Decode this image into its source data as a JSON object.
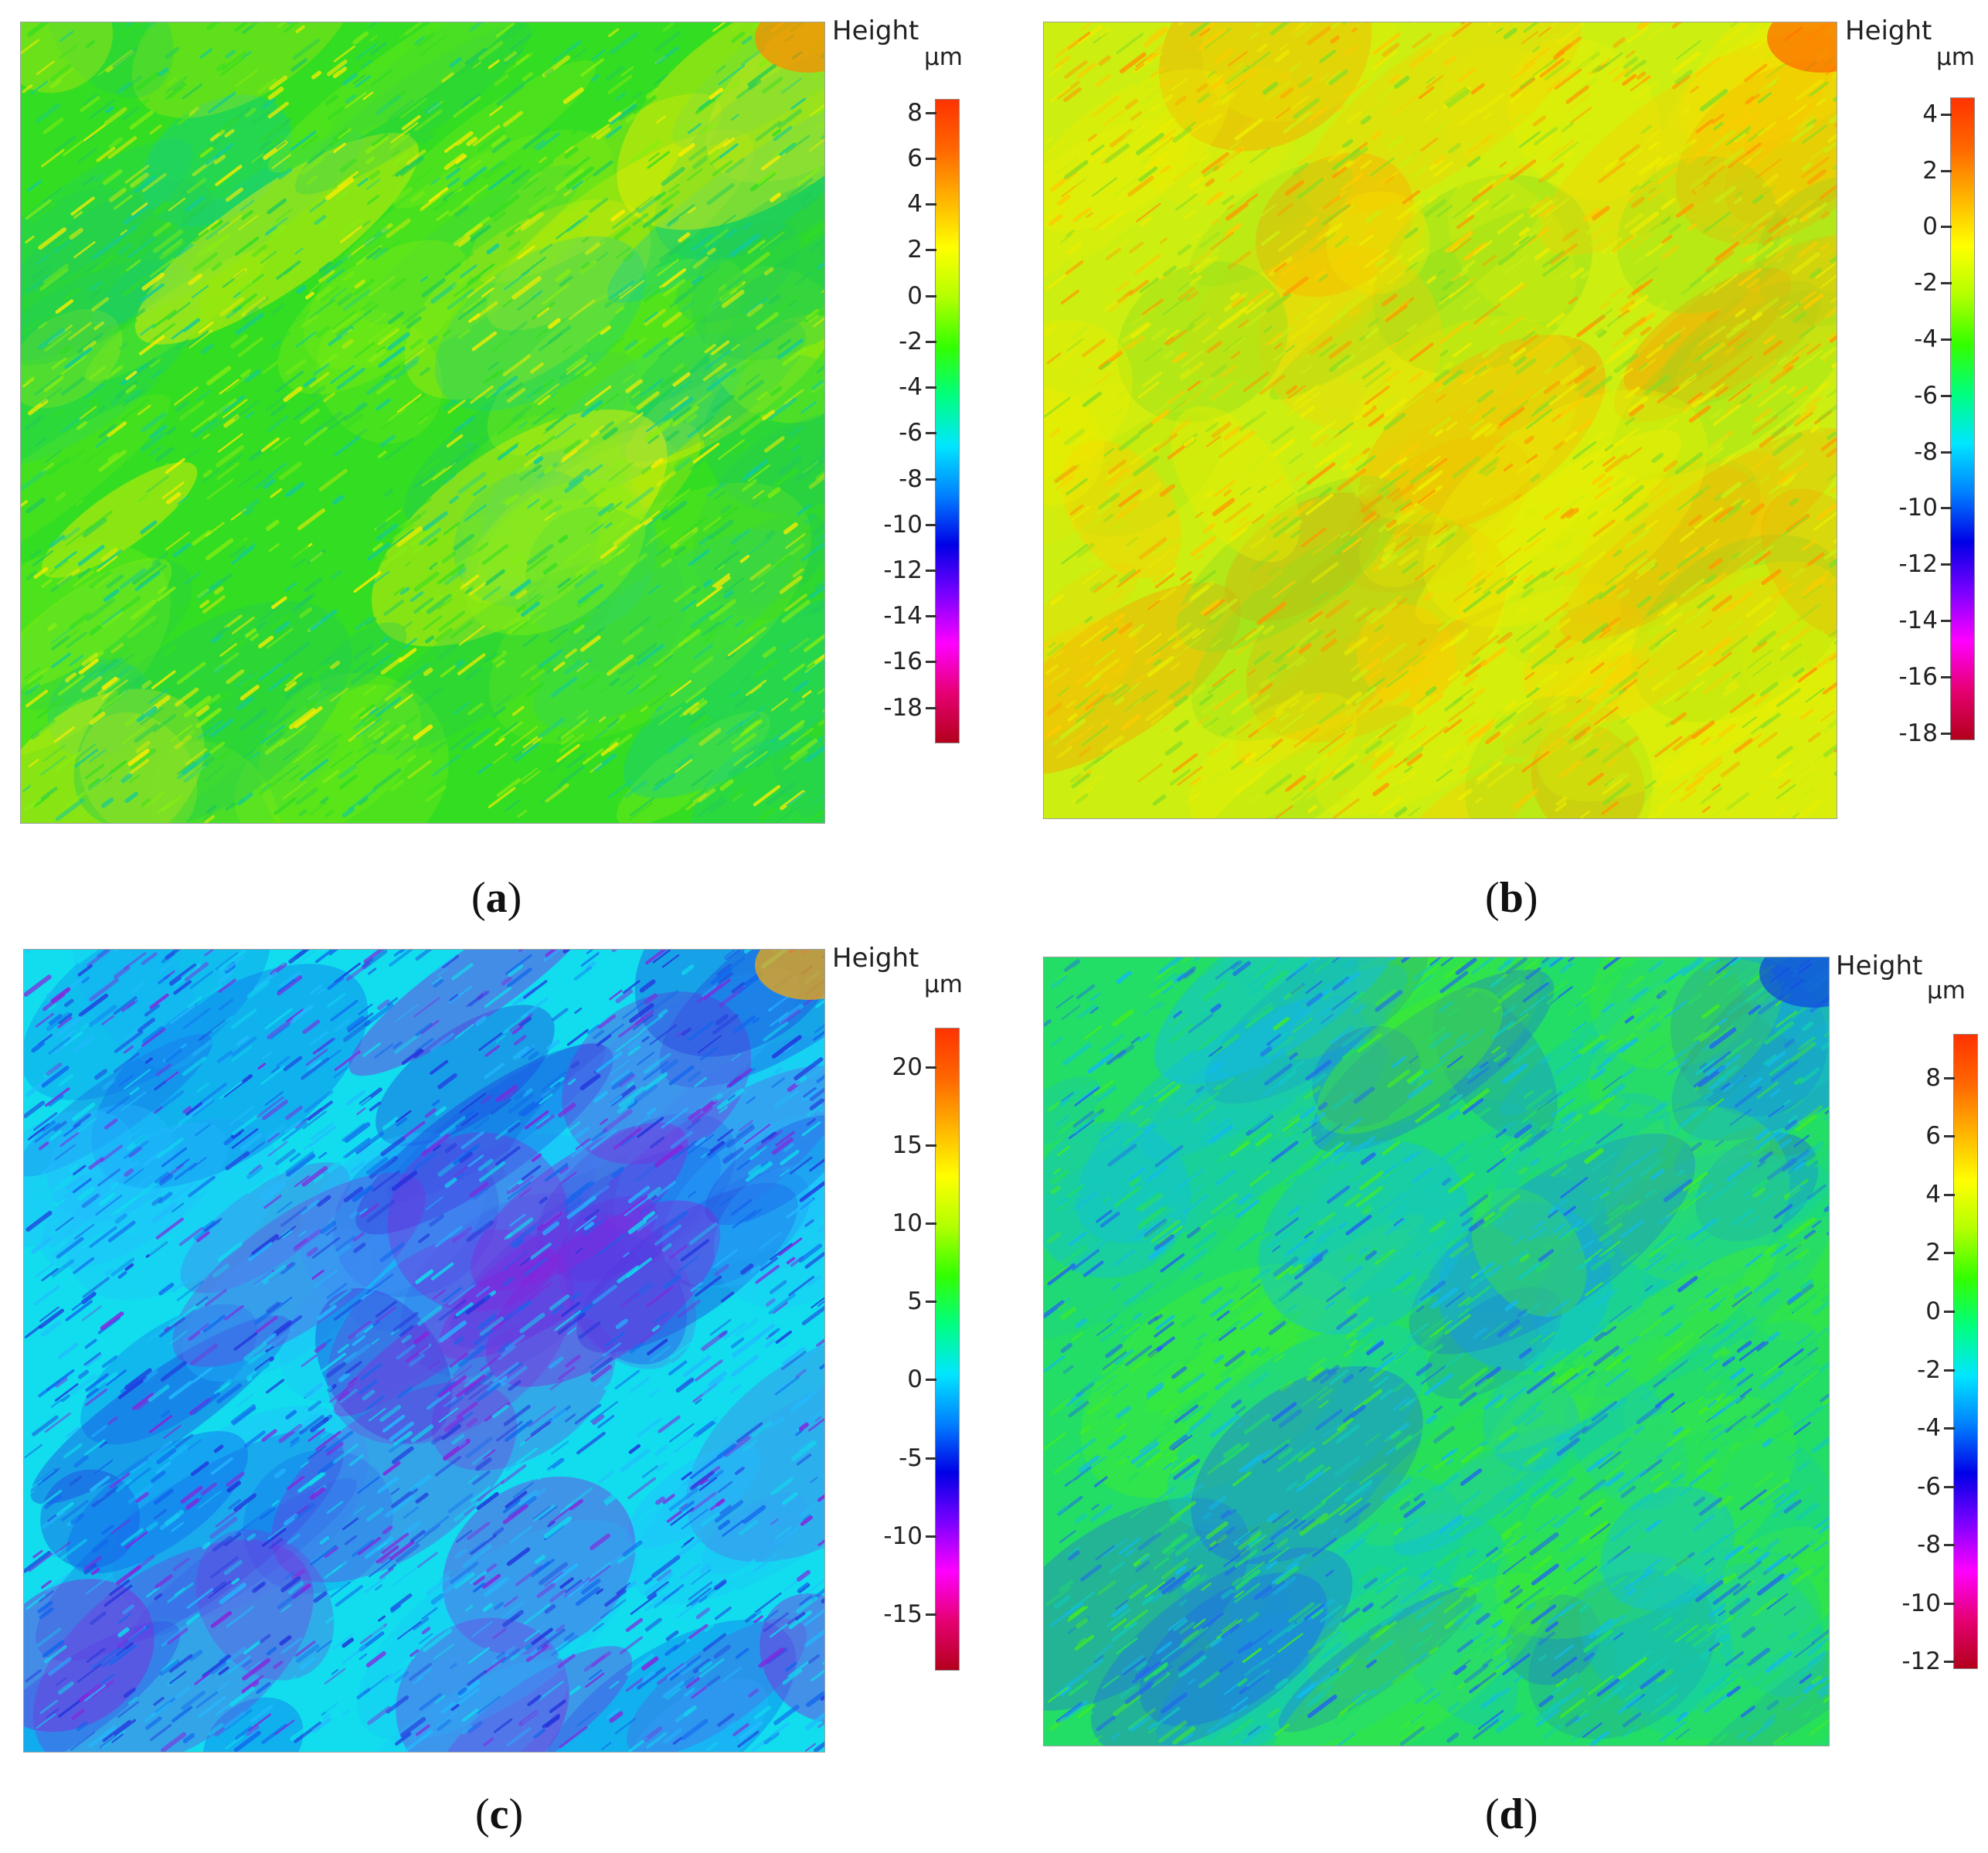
{
  "colorbar_gradient": [
    "#b3001b",
    "#e60073",
    "#ff00ff",
    "#7a00ff",
    "#0000e6",
    "#0080ff",
    "#00e6ff",
    "#00ff80",
    "#33ff00",
    "#b3ff00",
    "#ffff00",
    "#ffb300",
    "#ff6600",
    "#ff3300"
  ],
  "panels": [
    {
      "id": "a",
      "caption_open": "(",
      "caption_letter": "a",
      "caption_close": ")",
      "scale_title": "Height",
      "scale_unit": "µm",
      "scale_range": [
        -19.5,
        8.6
      ],
      "ticks": [
        8,
        6,
        4,
        2,
        0,
        -2,
        -4,
        -6,
        -8,
        -10,
        -12,
        -14,
        -16,
        -18
      ],
      "dominant_colors": [
        "#33dd22",
        "#22cc55",
        "#88ee11",
        "#11cc99",
        "#ffee00"
      ],
      "corner_highlight": "#ff8800"
    },
    {
      "id": "b",
      "caption_open": "(",
      "caption_letter": "b",
      "caption_close": ")",
      "scale_title": "Height",
      "scale_unit": "µm",
      "scale_range": [
        -18.2,
        4.6
      ],
      "ticks": [
        4,
        2,
        0,
        -2,
        -4,
        -6,
        -8,
        -10,
        -12,
        -14,
        -16,
        -18
      ],
      "dominant_colors": [
        "#ccee11",
        "#eeee00",
        "#88dd22",
        "#ffcc00",
        "#ff9900"
      ],
      "corner_highlight": "#ff6600"
    },
    {
      "id": "c",
      "caption_open": "(",
      "caption_letter": "c",
      "caption_close": ")",
      "scale_title": "Height",
      "scale_unit": "µm",
      "scale_range": [
        -18.5,
        22.5
      ],
      "ticks": [
        20,
        15,
        10,
        5,
        0,
        -5,
        -10,
        -15
      ],
      "dominant_colors": [
        "#11ddee",
        "#22bbff",
        "#1166ee",
        "#2233dd",
        "#8822dd"
      ],
      "corner_highlight": "#ffaa00"
    },
    {
      "id": "d",
      "caption_open": "(",
      "caption_letter": "d",
      "caption_close": ")",
      "scale_title": "Height",
      "scale_unit": "µm",
      "scale_range": [
        -12.2,
        9.5
      ],
      "ticks": [
        8,
        6,
        4,
        2,
        0,
        -2,
        -4,
        -6,
        -8,
        -10,
        -12
      ],
      "dominant_colors": [
        "#22dd66",
        "#11ccbb",
        "#44ee22",
        "#11bbee",
        "#2266ee"
      ],
      "corner_highlight": "#1144dd"
    }
  ]
}
